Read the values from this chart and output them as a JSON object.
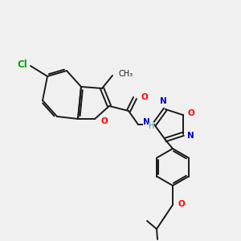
{
  "bg_color": "#f0f0f0",
  "bond_color": "#1a1a1a",
  "atom_colors": {
    "O": "#ff0000",
    "N": "#0000cc",
    "Cl": "#00aa00",
    "H": "#20a0a0",
    "C": "#1a1a1a"
  },
  "figsize": [
    3.0,
    3.0
  ],
  "dpi": 100,
  "lw": 1.4,
  "off": 2.2,
  "fs": 7.5
}
